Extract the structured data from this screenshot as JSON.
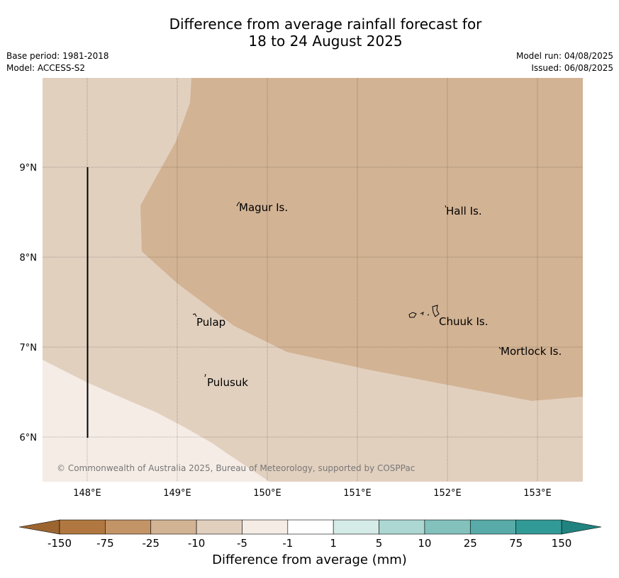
{
  "title": {
    "line1": "Difference from average rainfall forecast for",
    "line2": "18 to 24 August 2025"
  },
  "meta": {
    "base_period": "Base period: 1981-2018",
    "model": "Model: ACCESS-S2",
    "model_run": "Model run: 04/08/2025",
    "issued": "Issued: 06/08/2025"
  },
  "map": {
    "lon_ticks": [
      "148°E",
      "149°E",
      "150°E",
      "151°E",
      "152°E",
      "153°E"
    ],
    "lat_ticks": [
      "9°N",
      "8°N",
      "7°N",
      "6°N"
    ],
    "places": [
      "Magur Is.",
      "Hall Is.",
      "Pulap",
      "Chuuk Is.",
      "Mortlock Is.",
      "Pulusuk"
    ],
    "copyright": "© Commonwealth of Australia 2025, Bureau of Meteorology, supported by COSPPac",
    "region_colors": {
      "minus25_to_minus10": "#d2b394",
      "minus10_to_minus5": "#e2d0bf",
      "minus5_to_minus1": "#f5ece6"
    }
  },
  "colorbar": {
    "labels": [
      "-150",
      "-75",
      "-25",
      "-10",
      "-5",
      "-1",
      "1",
      "5",
      "10",
      "25",
      "75",
      "150"
    ],
    "colors": [
      "#b07840",
      "#c29466",
      "#d2b394",
      "#e2d0bf",
      "#f5ece6",
      "#ffffff",
      "#d5ebe7",
      "#add7d3",
      "#83c1bc",
      "#58aba8",
      "#329a96"
    ],
    "under_color": "#9c6530",
    "over_color": "#21837f",
    "title": "Difference from average (mm)"
  }
}
